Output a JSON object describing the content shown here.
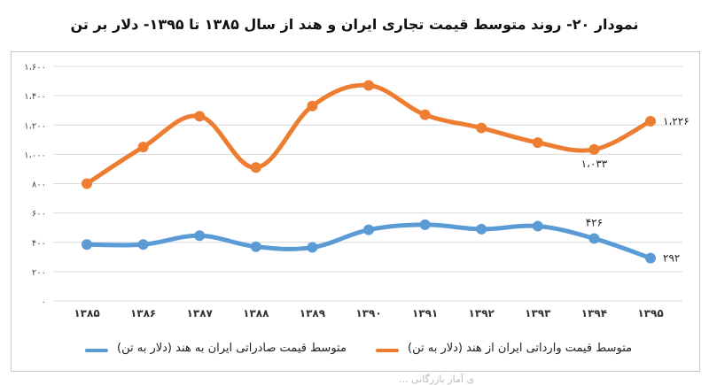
{
  "chart_data": {
    "type": "line",
    "title": "نمودار ۲۰- روند متوسط قیمت تجاری ایران و هند از سال ۱۳۸۵ تا ۱۳۹۵- دلار بر تن",
    "categories": [
      "۱۳۸۵",
      "۱۳۸۶",
      "۱۳۸۷",
      "۱۳۸۸",
      "۱۳۸۹",
      "۱۳۹۰",
      "۱۳۹۱",
      "۱۳۹۲",
      "۱۳۹۳",
      "۱۳۹۴",
      "۱۳۹۵"
    ],
    "ylim": [
      0,
      1600
    ],
    "yticks": [
      0,
      200,
      400,
      600,
      800,
      1000,
      1200,
      1400,
      1600
    ],
    "ytick_labels": [
      "۰",
      "۲۰۰",
      "۴۰۰",
      "۶۰۰",
      "۸۰۰",
      "۱،۰۰۰",
      "۱،۲۰۰",
      "۱،۴۰۰",
      "۱،۶۰۰"
    ],
    "grid": true,
    "legend_position": "bottom",
    "series": [
      {
        "name": "متوسط قیمت وارداتی ایران از هند (دلار به تن)",
        "color": "#ED7D31",
        "values": [
          800,
          1050,
          1260,
          910,
          1330,
          1470,
          1270,
          1180,
          1080,
          1033,
          1226
        ]
      },
      {
        "name": "متوسط قیمت صادراتی ایران به هند (دلار به تن)",
        "color": "#5B9BD5",
        "values": [
          385,
          385,
          445,
          370,
          365,
          485,
          520,
          490,
          510,
          426,
          292
        ]
      }
    ],
    "annotations": [
      {
        "series": 0,
        "index": 10,
        "text": "۱،۲۲۶"
      },
      {
        "series": 0,
        "index": 9,
        "text": "۱،۰۳۳"
      },
      {
        "series": 1,
        "index": 9,
        "text": "۴۲۶"
      },
      {
        "series": 1,
        "index": 10,
        "text": "۲۹۲"
      }
    ]
  },
  "footer_text": "ی آمار بازرگانی ..."
}
